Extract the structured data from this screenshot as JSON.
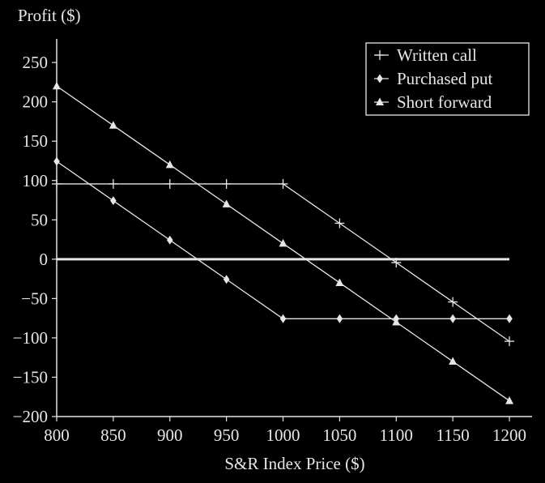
{
  "chart_data": {
    "type": "line",
    "title": "",
    "xlabel": "S&R Index Price ($)",
    "ylabel": "Profit ($)",
    "x": [
      800,
      850,
      900,
      950,
      1000,
      1050,
      1100,
      1150,
      1200
    ],
    "xlim": [
      800,
      1220
    ],
    "ylim": [
      -200,
      280
    ],
    "xticks": [
      800,
      850,
      900,
      950,
      1000,
      1050,
      1100,
      1150,
      1200
    ],
    "yticks": [
      -200,
      -150,
      -100,
      -50,
      0,
      50,
      100,
      150,
      200,
      250
    ],
    "grid": false,
    "legend_position": "top-right",
    "series": [
      {
        "name": "Written call",
        "marker": "plus",
        "values": [
          95.68,
          95.68,
          95.68,
          95.68,
          95.68,
          45.68,
          -4.32,
          -54.32,
          -104.32
        ]
      },
      {
        "name": "Purchased put",
        "marker": "diamond",
        "values": [
          124.32,
          74.32,
          24.32,
          -25.68,
          -75.68,
          -75.68,
          -75.68,
          -75.68,
          -75.68
        ]
      },
      {
        "name": "Short forward",
        "marker": "triangle",
        "values": [
          220,
          170,
          120,
          70,
          20,
          -30,
          -80,
          -130,
          -180
        ]
      }
    ],
    "colors": {
      "background": "#000000",
      "foreground": "#e6e6e6"
    }
  }
}
